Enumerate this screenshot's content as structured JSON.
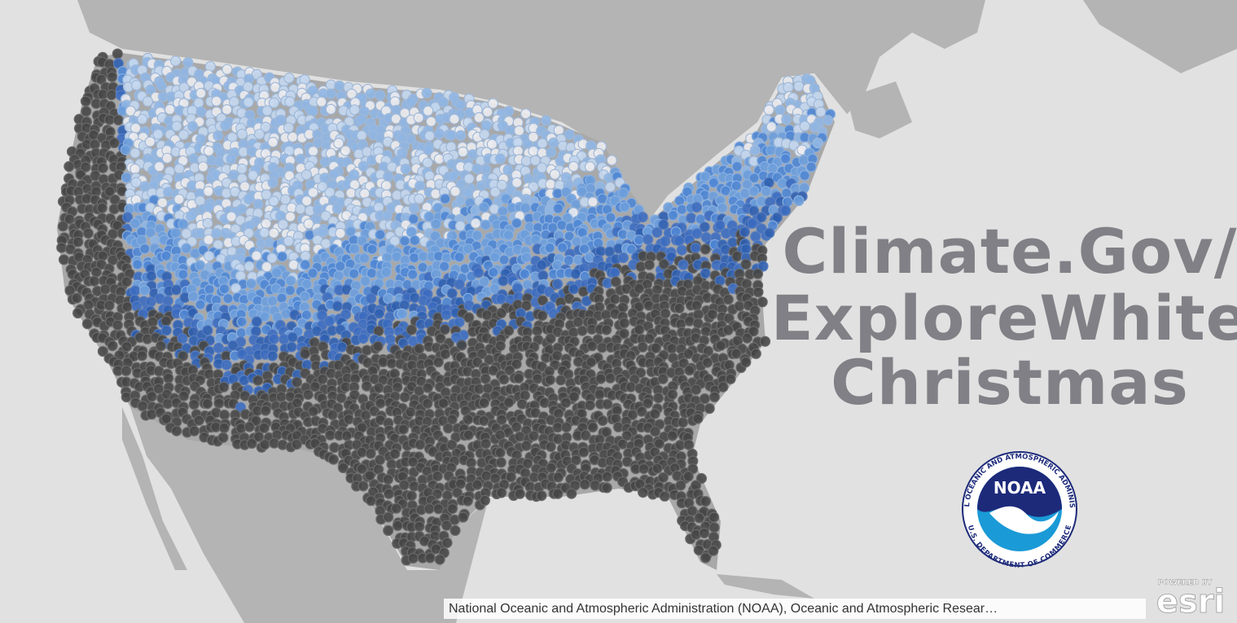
{
  "title": {
    "lines": [
      "Climate.Gov/",
      "ExploreWhite",
      "Christmas"
    ]
  },
  "logo": {
    "abbr": "NOAA",
    "ring_top": "NATIONAL OCEANIC AND ATMOSPHERIC ADMINISTRATION",
    "ring_bottom": "U.S. DEPARTMENT OF COMMERCE"
  },
  "attribution": "National Oceanic and Atmospheric Administration (NOAA), Oceanic and Atmospheric Resear…",
  "esri": {
    "powered_by": "POWERED BY",
    "brand": "esri"
  }
}
